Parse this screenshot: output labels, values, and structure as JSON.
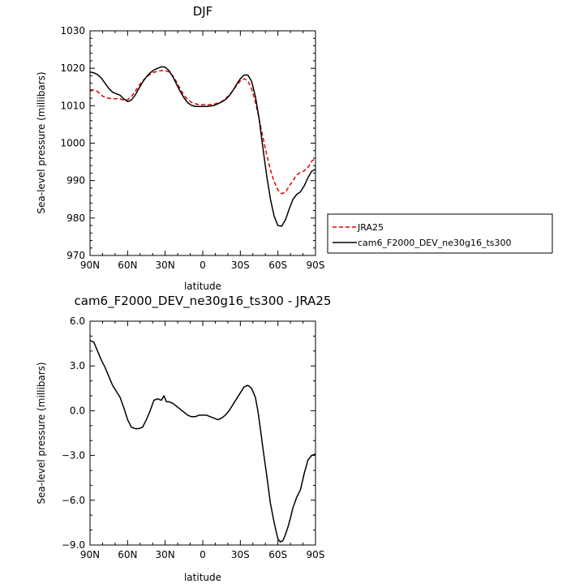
{
  "chart_data": [
    {
      "type": "line",
      "title": "DJF",
      "xlabel": "latitude",
      "ylabel": "Sea-level pressure (millibars)",
      "xlim": [
        90,
        -90
      ],
      "ylim": [
        970,
        1030
      ],
      "x_ticks": [
        90,
        60,
        30,
        0,
        -30,
        -60,
        -90
      ],
      "x_tick_labels": [
        "90N",
        "60N",
        "30N",
        "0",
        "30S",
        "60S",
        "90S"
      ],
      "y_ticks": [
        970,
        980,
        990,
        1000,
        1010,
        1020,
        1030
      ],
      "y_tick_labels": [
        "970",
        "980",
        "990",
        "1000",
        "1010",
        "1020",
        "1030"
      ],
      "legend": "outside-right",
      "series": [
        {
          "name": "JRA25",
          "color": "#dd0000",
          "dash": true,
          "x": [
            90,
            87,
            84,
            81,
            78,
            75,
            72,
            69,
            66,
            63,
            60,
            57,
            54,
            51,
            48,
            45,
            42,
            39,
            36,
            33,
            30,
            27,
            24,
            21,
            18,
            15,
            12,
            9,
            6,
            3,
            0,
            -3,
            -6,
            -9,
            -12,
            -15,
            -18,
            -21,
            -24,
            -27,
            -30,
            -33,
            -36,
            -39,
            -42,
            -45,
            -48,
            -51,
            -54,
            -57,
            -60,
            -63,
            -66,
            -69,
            -72,
            -75,
            -78,
            -81,
            -84,
            -87,
            -90
          ],
          "y": [
            1014.2,
            1014.2,
            1013.8,
            1012.8,
            1012.2,
            1012.0,
            1011.8,
            1011.9,
            1011.8,
            1011.5,
            1011.6,
            1012.4,
            1013.8,
            1015.3,
            1016.6,
            1017.6,
            1018.4,
            1018.9,
            1019.2,
            1019.4,
            1019.4,
            1019.0,
            1018.0,
            1016.4,
            1014.5,
            1012.8,
            1011.6,
            1010.9,
            1010.5,
            1010.3,
            1010.3,
            1010.3,
            1010.3,
            1010.4,
            1010.7,
            1011.1,
            1011.8,
            1012.8,
            1014.0,
            1015.4,
            1016.6,
            1017.2,
            1016.6,
            1014.5,
            1011.0,
            1006.5,
            1001.6,
            997.0,
            992.9,
            989.7,
            987.5,
            986.5,
            986.9,
            988.5,
            990.0,
            991.5,
            992.2,
            992.6,
            993.5,
            995.2,
            996.0
          ]
        },
        {
          "name": "cam6_F2000_DEV_ne30g16_ts300",
          "color": "#000000",
          "dash": false,
          "x": [
            90,
            87,
            84,
            81,
            78,
            75,
            72,
            69,
            66,
            63,
            60,
            57,
            54,
            51,
            48,
            45,
            42,
            39,
            36,
            33,
            30,
            27,
            24,
            21,
            18,
            15,
            12,
            9,
            6,
            3,
            0,
            -3,
            -6,
            -9,
            -12,
            -15,
            -18,
            -21,
            -24,
            -27,
            -30,
            -33,
            -36,
            -39,
            -42,
            -45,
            -48,
            -51,
            -54,
            -57,
            -60,
            -63,
            -66,
            -69,
            -72,
            -75,
            -78,
            -81,
            -84,
            -87,
            -90
          ],
          "y": [
            1019.0,
            1018.8,
            1018.3,
            1017.4,
            1016.0,
            1014.6,
            1013.6,
            1013.2,
            1012.8,
            1011.8,
            1011.1,
            1011.5,
            1012.8,
            1014.6,
            1016.3,
            1017.7,
            1018.8,
            1019.5,
            1020.0,
            1020.4,
            1020.3,
            1019.4,
            1017.8,
            1015.8,
            1013.8,
            1012.1,
            1010.8,
            1010.1,
            1009.8,
            1009.8,
            1009.8,
            1009.8,
            1009.9,
            1010.1,
            1010.5,
            1011.0,
            1011.6,
            1012.6,
            1014.0,
            1015.7,
            1017.2,
            1018.2,
            1018.2,
            1016.5,
            1012.5,
            1006.5,
            998.8,
            991.4,
            985.1,
            980.5,
            978.0,
            977.8,
            979.5,
            982.4,
            985.0,
            986.3,
            987.0,
            988.6,
            990.8,
            992.5,
            993.0
          ]
        }
      ]
    },
    {
      "type": "line",
      "title": "cam6_F2000_DEV_ne30g16_ts300 - JRA25",
      "xlabel": "latitude",
      "ylabel": "Sea-level pressure (millibars)",
      "xlim": [
        90,
        -90
      ],
      "ylim": [
        -9.0,
        6.0
      ],
      "x_ticks": [
        90,
        60,
        30,
        0,
        -30,
        -60,
        -90
      ],
      "x_tick_labels": [
        "90N",
        "60N",
        "30N",
        "0",
        "30S",
        "60S",
        "90S"
      ],
      "y_ticks": [
        -9.0,
        -6.0,
        -3.0,
        0.0,
        3.0,
        6.0
      ],
      "y_tick_labels": [
        "−9.0",
        "−6.0",
        "−3.0",
        "0.0",
        "3.0",
        "6.0"
      ],
      "series": [
        {
          "color": "#000000",
          "dash": false,
          "x": [
            90,
            87,
            84,
            81,
            78,
            75,
            72,
            69,
            66,
            63,
            60,
            57,
            54,
            51,
            48,
            45,
            42,
            39,
            36,
            33,
            31,
            29,
            27,
            24,
            21,
            18,
            15,
            12,
            9,
            6,
            3,
            0,
            -3,
            -6,
            -9,
            -12,
            -15,
            -18,
            -21,
            -24,
            -27,
            -30,
            -33,
            -36,
            -39,
            -42,
            -44,
            -46,
            -48,
            -51,
            -54,
            -57,
            -60,
            -62,
            -64,
            -66,
            -68,
            -70,
            -72,
            -75,
            -78,
            -81,
            -84,
            -87,
            -90
          ],
          "y": [
            4.7,
            4.6,
            4.0,
            3.4,
            2.9,
            2.3,
            1.7,
            1.3,
            0.9,
            0.2,
            -0.6,
            -1.1,
            -1.2,
            -1.2,
            -1.1,
            -0.6,
            0.0,
            0.7,
            0.8,
            0.7,
            1.0,
            0.6,
            0.6,
            0.5,
            0.3,
            0.1,
            -0.1,
            -0.3,
            -0.4,
            -0.4,
            -0.3,
            -0.3,
            -0.3,
            -0.4,
            -0.5,
            -0.6,
            -0.5,
            -0.3,
            0.0,
            0.4,
            0.8,
            1.2,
            1.6,
            1.7,
            1.5,
            0.9,
            0.0,
            -1.2,
            -2.5,
            -4.3,
            -6.2,
            -7.5,
            -8.6,
            -8.8,
            -8.7,
            -8.3,
            -7.8,
            -7.2,
            -6.5,
            -5.8,
            -5.3,
            -4.2,
            -3.3,
            -3.0,
            -2.9
          ]
        }
      ]
    }
  ]
}
